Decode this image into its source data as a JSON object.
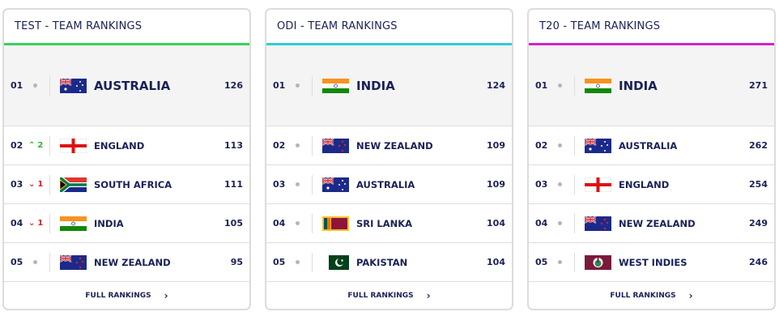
{
  "full_rankings_label": "FULL RANKINGS",
  "cards": [
    {
      "title": "TEST - TEAM RANKINGS",
      "accent": "#3ccf5a",
      "rows": [
        {
          "pos": "01",
          "change": "none",
          "delta": "",
          "team": "AUSTRALIA",
          "flag": "australia",
          "points": "126"
        },
        {
          "pos": "02",
          "change": "up",
          "delta": "2",
          "team": "ENGLAND",
          "flag": "england",
          "points": "113"
        },
        {
          "pos": "03",
          "change": "down",
          "delta": "1",
          "team": "SOUTH AFRICA",
          "flag": "south-africa",
          "points": "111"
        },
        {
          "pos": "04",
          "change": "down",
          "delta": "1",
          "team": "INDIA",
          "flag": "india",
          "points": "105"
        },
        {
          "pos": "05",
          "change": "none",
          "delta": "",
          "team": "NEW ZEALAND",
          "flag": "new-zealand",
          "points": "95"
        }
      ]
    },
    {
      "title": "ODI - TEAM RANKINGS",
      "accent": "#2ccfd0",
      "rows": [
        {
          "pos": "01",
          "change": "none",
          "delta": "",
          "team": "INDIA",
          "flag": "india",
          "points": "124"
        },
        {
          "pos": "02",
          "change": "none",
          "delta": "",
          "team": "NEW ZEALAND",
          "flag": "new-zealand",
          "points": "109"
        },
        {
          "pos": "03",
          "change": "none",
          "delta": "",
          "team": "AUSTRALIA",
          "flag": "australia",
          "points": "109"
        },
        {
          "pos": "04",
          "change": "none",
          "delta": "",
          "team": "SRI LANKA",
          "flag": "sri-lanka",
          "points": "104"
        },
        {
          "pos": "05",
          "change": "none",
          "delta": "",
          "team": "PAKISTAN",
          "flag": "pakistan",
          "points": "104"
        }
      ]
    },
    {
      "title": "T20 - TEAM RANKINGS",
      "accent": "#d41fd1",
      "rows": [
        {
          "pos": "01",
          "change": "none",
          "delta": "",
          "team": "INDIA",
          "flag": "india",
          "points": "271"
        },
        {
          "pos": "02",
          "change": "none",
          "delta": "",
          "team": "AUSTRALIA",
          "flag": "australia",
          "points": "262"
        },
        {
          "pos": "03",
          "change": "none",
          "delta": "",
          "team": "ENGLAND",
          "flag": "england",
          "points": "254"
        },
        {
          "pos": "04",
          "change": "none",
          "delta": "",
          "team": "NEW ZEALAND",
          "flag": "new-zealand",
          "points": "249"
        },
        {
          "pos": "05",
          "change": "none",
          "delta": "",
          "team": "WEST INDIES",
          "flag": "west-indies",
          "points": "246"
        }
      ]
    }
  ]
}
